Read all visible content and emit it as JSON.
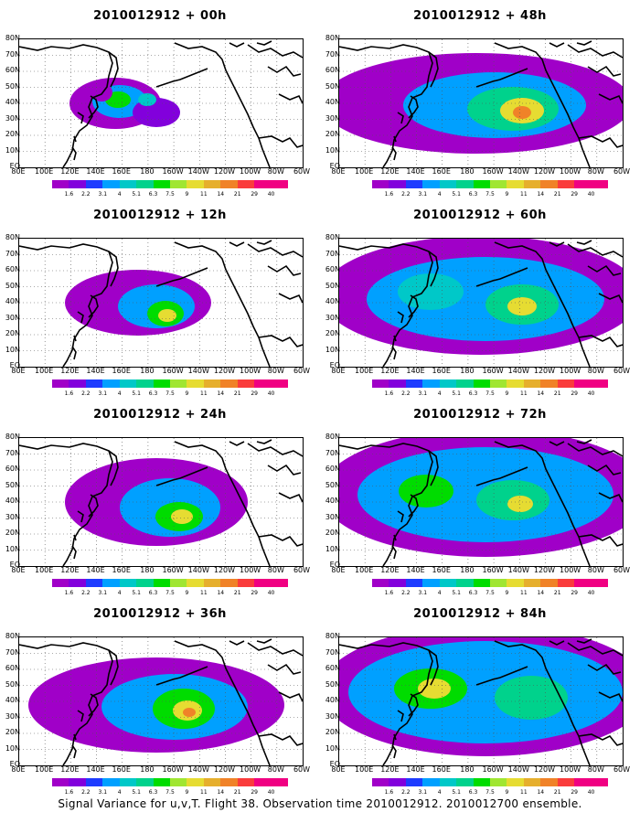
{
  "panels": [
    {
      "title": "2010012912 + 00h",
      "forecast_hour": 0
    },
    {
      "title": "2010012912 + 48h",
      "forecast_hour": 48
    },
    {
      "title": "2010012912 + 12h",
      "forecast_hour": 12
    },
    {
      "title": "2010012912 + 60h",
      "forecast_hour": 60
    },
    {
      "title": "2010012912 + 24h",
      "forecast_hour": 24
    },
    {
      "title": "2010012912 + 72h",
      "forecast_hour": 72
    },
    {
      "title": "2010012912 + 36h",
      "forecast_hour": 36
    },
    {
      "title": "2010012912 + 84h",
      "forecast_hour": 84
    }
  ],
  "lat_labels": [
    "80N",
    "70N",
    "60N",
    "50N",
    "40N",
    "30N",
    "20N",
    "10N",
    "EQ"
  ],
  "lon_labels": [
    "80E",
    "100E",
    "120E",
    "140E",
    "160E",
    "180",
    "160W",
    "140W",
    "120W",
    "100W",
    "80W",
    "60W"
  ],
  "colorbar": {
    "labels": [
      "1.6",
      "2.2",
      "3.1",
      "4",
      "5.1",
      "6.3",
      "7.5",
      "9",
      "11",
      "14",
      "21",
      "29",
      "40"
    ],
    "colors": [
      "#a000c8",
      "#8200dc",
      "#1e3cff",
      "#00a0ff",
      "#00c8c8",
      "#00d28c",
      "#00dc00",
      "#a0e632",
      "#e6dc32",
      "#e6af2d",
      "#f08228",
      "#fa3c3c",
      "#f00082"
    ]
  },
  "caption": "Signal Variance for u,v,T. Flight 38. Observation time 2010012912. 2010012700 ensemble."
}
